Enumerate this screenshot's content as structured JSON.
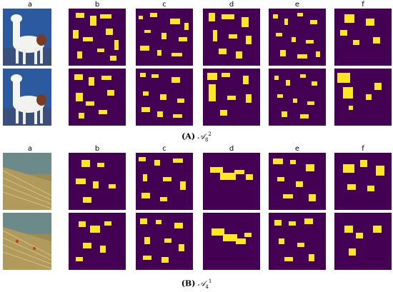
{
  "column_labels": [
    "a",
    "b",
    "c",
    "d",
    "e",
    "f"
  ],
  "panels": [
    {
      "tag": "(A)",
      "symbol": "𝒜",
      "sub": "8",
      "sup": "2",
      "image_subject": "llama photo",
      "rows": 2
    },
    {
      "tag": "(B)",
      "symbol": "𝒜",
      "sub": "4",
      "sup": "1",
      "image_subject": "broom close-up photo",
      "rows": 2
    }
  ],
  "colors": {
    "map_background": "#440154",
    "map_highlight": "#fde725",
    "photo_a_sky": "#2b5aa0",
    "photo_b_tone": "#9c8a55"
  }
}
